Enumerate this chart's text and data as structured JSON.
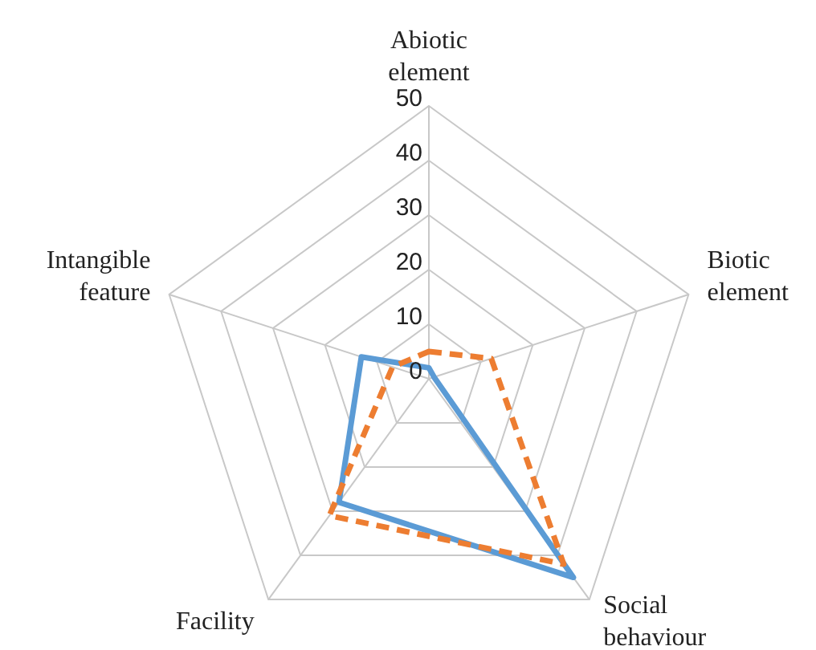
{
  "chart_data": {
    "type": "radar",
    "categories": [
      "Abiotic element",
      "Biotic element",
      "Social behaviour",
      "Facility",
      "Intangible feature"
    ],
    "ylim": [
      0,
      50
    ],
    "yticks": [
      0,
      10,
      20,
      30,
      40,
      50
    ],
    "grid": true,
    "legend": false,
    "series": [
      {
        "color": "#5b9bd5",
        "line_style": "solid",
        "values": [
          2,
          1,
          45,
          28,
          13
        ]
      },
      {
        "color": "#ed7d31",
        "line_style": "dashed",
        "values": [
          5,
          12,
          42,
          31,
          7
        ]
      }
    ]
  }
}
